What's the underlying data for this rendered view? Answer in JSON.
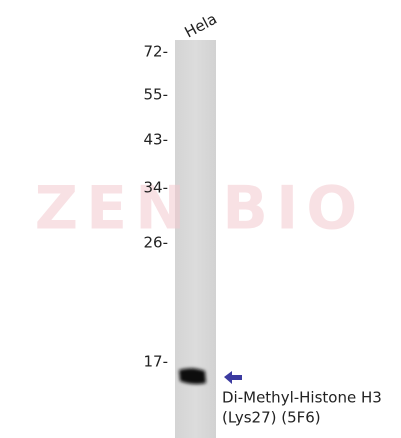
{
  "lane_label": "Hela",
  "markers": [
    "72-",
    "55-",
    "43-",
    "34-",
    "26-",
    "17-"
  ],
  "watermark": "ZEN BIO",
  "annotation": {
    "lines": [
      "Di-Methyl-Histone H3",
      "(Lys27) (5F6)"
    ]
  }
}
